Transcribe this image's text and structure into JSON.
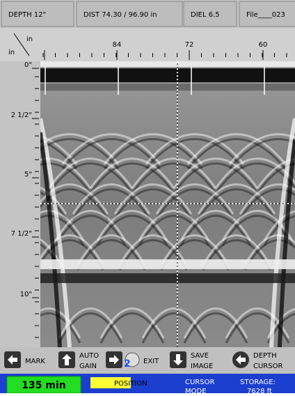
{
  "header": {
    "fields": [
      "DEPTH 12\"",
      "DIST 74.30 / 96.90 in",
      "DIEL 6.5",
      "File____023"
    ]
  },
  "ruler": {
    "unit_x": "in",
    "unit_y": "in",
    "x_labels": [
      "84",
      "72",
      "60"
    ],
    "y_labels": [
      "0\"",
      "2 1/2\"",
      "5\"",
      "7 1/2\"",
      "10\""
    ]
  },
  "buttons": [
    {
      "lines": [
        "MARK"
      ]
    },
    {
      "lines": [
        "AUTO",
        "GAIN"
      ]
    },
    {
      "badge": "2",
      "lines": [
        "EXIT"
      ]
    },
    {
      "lines": [
        "SAVE",
        "IMAGE"
      ]
    },
    {
      "lines": [
        "DEPTH",
        "CURSOR"
      ]
    }
  ],
  "status": {
    "time": "135 min",
    "position": "POSITION",
    "cursor": [
      "CURSOR",
      "MODE"
    ],
    "storage": [
      "STORAGE:",
      "7628 ft"
    ]
  }
}
